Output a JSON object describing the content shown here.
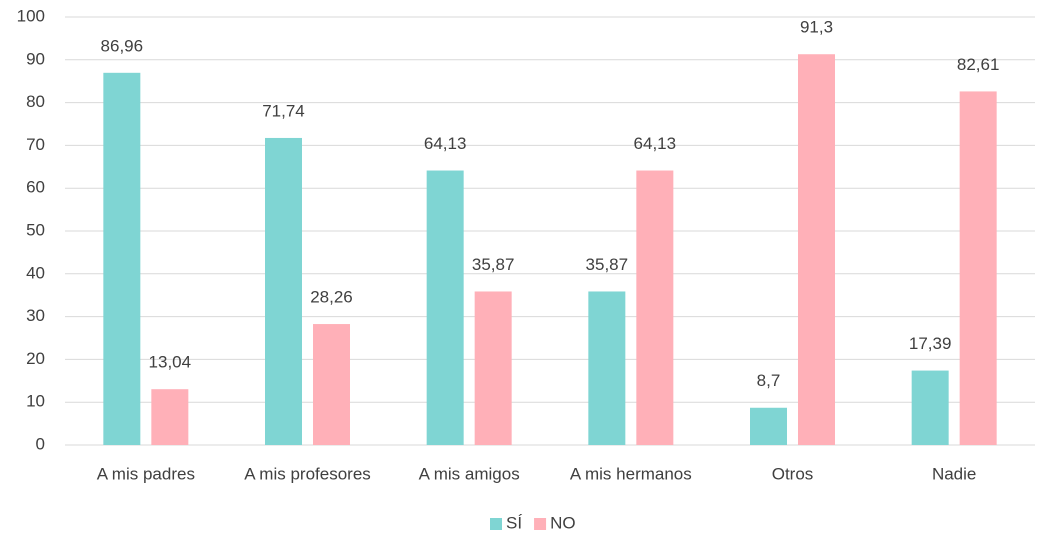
{
  "chart_data": {
    "type": "bar",
    "categories": [
      "A mis padres",
      "A mis profesores",
      "A mis amigos",
      "A mis hermanos",
      "Otros",
      "Nadie"
    ],
    "series": [
      {
        "name": "SÍ",
        "color": "#7fd5d3",
        "values": [
          86.96,
          71.74,
          64.13,
          35.87,
          8.7,
          17.39
        ],
        "value_labels": [
          "86,96",
          "71,74",
          "64,13",
          "35,87",
          "8,7",
          "17,39"
        ]
      },
      {
        "name": "NO",
        "color": "#ffb0b8",
        "values": [
          13.04,
          28.26,
          35.87,
          64.13,
          91.3,
          82.61
        ],
        "value_labels": [
          "13,04",
          "28,26",
          "35,87",
          "64,13",
          "91,3",
          "82,61"
        ]
      }
    ],
    "ylim": [
      0,
      100
    ],
    "yticks": [
      0,
      10,
      20,
      30,
      40,
      50,
      60,
      70,
      80,
      90,
      100
    ],
    "grid": true,
    "legend": "bottom"
  }
}
